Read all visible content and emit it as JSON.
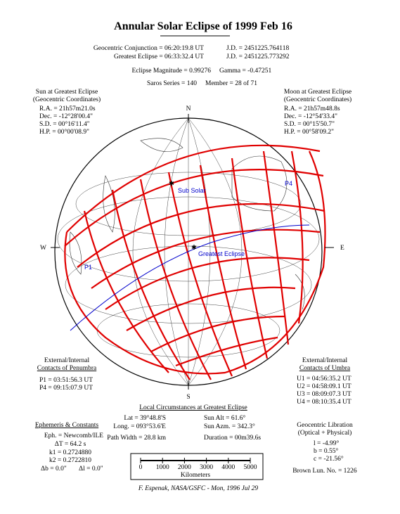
{
  "header": {
    "title": "Annular Solar Eclipse of 1999 Feb 16",
    "rows": [
      [
        "Geocentric Conjunction = 06:20:19.8 UT",
        "J.D. = 2451225.764118"
      ],
      [
        "Greatest Eclipse = 06:33:32.4 UT",
        "J.D. = 2451225.773292"
      ],
      [
        "Eclipse Magnitude = 0.99276",
        "Gamma = -0.47251"
      ],
      [
        "Saros Series = 140",
        "Member = 28 of 71"
      ]
    ]
  },
  "sun": {
    "title": [
      "Sun at Greatest Eclipse",
      "(Geocentric Coordinates)"
    ],
    "lines": [
      "R.A. = 21h57m21.0s",
      "Dec. = -12°28'00.4\"",
      "S.D. = 00°16'11.4\"",
      "H.P. = 00°00'08.9\""
    ]
  },
  "moon": {
    "title": [
      "Moon at Greatest Eclipse",
      "(Geocentric Coordinates)"
    ],
    "lines": [
      "R.A. = 21h57m48.8s",
      "Dec. = -12°54'33.4\"",
      "S.D. = 00°15'50.7\"",
      "H.P. = 00°58'09.2\""
    ]
  },
  "map": {
    "compass": {
      "n": "N",
      "s": "S",
      "w": "W",
      "e": "E"
    },
    "labels": {
      "sub_solar": "Sub Solar",
      "greatest": "Greatest Eclipse",
      "p1": "P1",
      "p4": "P4"
    }
  },
  "penumbra": {
    "title": [
      "External/Internal",
      "Contacts of Penumbra"
    ],
    "lines": [
      "P1 = 03:51:56.3 UT",
      "P4 = 09:15:07.9 UT"
    ]
  },
  "umbra": {
    "title": [
      "External/Internal",
      "Contacts of Umbra"
    ],
    "lines": [
      "U1 = 04:56:35.2 UT",
      "U2 = 04:58:09.1 UT",
      "U3 = 08:09:07.3 UT",
      "U4 = 08:10:35.4 UT"
    ]
  },
  "local": {
    "title": "Local Circumstances at Greatest Eclipse",
    "rows": [
      [
        "Lat = 39°48.8'S",
        "Sun Alt = 61.6°"
      ],
      [
        "Long. = 093°53.6'E",
        "Sun Azm. = 342.3°"
      ],
      [
        "Path Width = 28.8 km",
        "Duration = 00m39.6s"
      ]
    ]
  },
  "scale": {
    "ticks": [
      0,
      1000,
      2000,
      3000,
      4000,
      5000
    ],
    "label": "Kilometers"
  },
  "ephemeris": {
    "title": "Ephemeris & Constants",
    "lines": [
      "Eph. = Newcomb/ILE",
      "ΔT = 64.2 s",
      "k1 = 0.2724880",
      "k2 = 0.2722810"
    ],
    "last": [
      "Δb = 0.0\"",
      "Δl = 0.0\""
    ]
  },
  "libration": {
    "title": [
      "Geocentric Libration",
      "(Optical + Physical)"
    ],
    "lines": [
      "l = -4.99°",
      "b = 0.55°",
      "c = -21.56°"
    ],
    "brown": "Brown Lun. No. = 1226"
  },
  "credit": "F. Espenak, NASA/GSFC - Mon, 1996 Jul 29"
}
